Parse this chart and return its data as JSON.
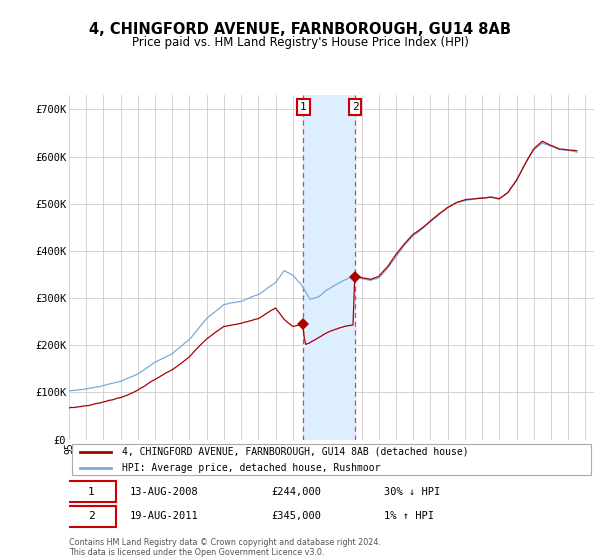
{
  "title": "4, CHINGFORD AVENUE, FARNBOROUGH, GU14 8AB",
  "subtitle": "Price paid vs. HM Land Registry's House Price Index (HPI)",
  "legend_property": "4, CHINGFORD AVENUE, FARNBOROUGH, GU14 8AB (detached house)",
  "legend_hpi": "HPI: Average price, detached house, Rushmoor",
  "footer": "Contains HM Land Registry data © Crown copyright and database right 2024.\nThis data is licensed under the Open Government Licence v3.0.",
  "transaction1_date": "13-AUG-2008",
  "transaction1_price": 244000,
  "transaction1_label": "30% ↓ HPI",
  "transaction2_date": "19-AUG-2011",
  "transaction2_price": 345000,
  "transaction2_label": "1% ↑ HPI",
  "ylim": [
    0,
    730000
  ],
  "xlim_start": 1995.0,
  "xlim_end": 2025.5,
  "yticks": [
    0,
    100000,
    200000,
    300000,
    400000,
    500000,
    600000,
    700000
  ],
  "ytick_labels": [
    "£0",
    "£100K",
    "£200K",
    "£300K",
    "£400K",
    "£500K",
    "£600K",
    "£700K"
  ],
  "property_color": "#aa0000",
  "hpi_color": "#7aaadd",
  "shade_color": "#ddeeff",
  "box_color": "#cc0000",
  "transaction1_x": 2008.62,
  "transaction2_x": 2011.62,
  "background_color": "#ffffff",
  "grid_color": "#cccccc"
}
